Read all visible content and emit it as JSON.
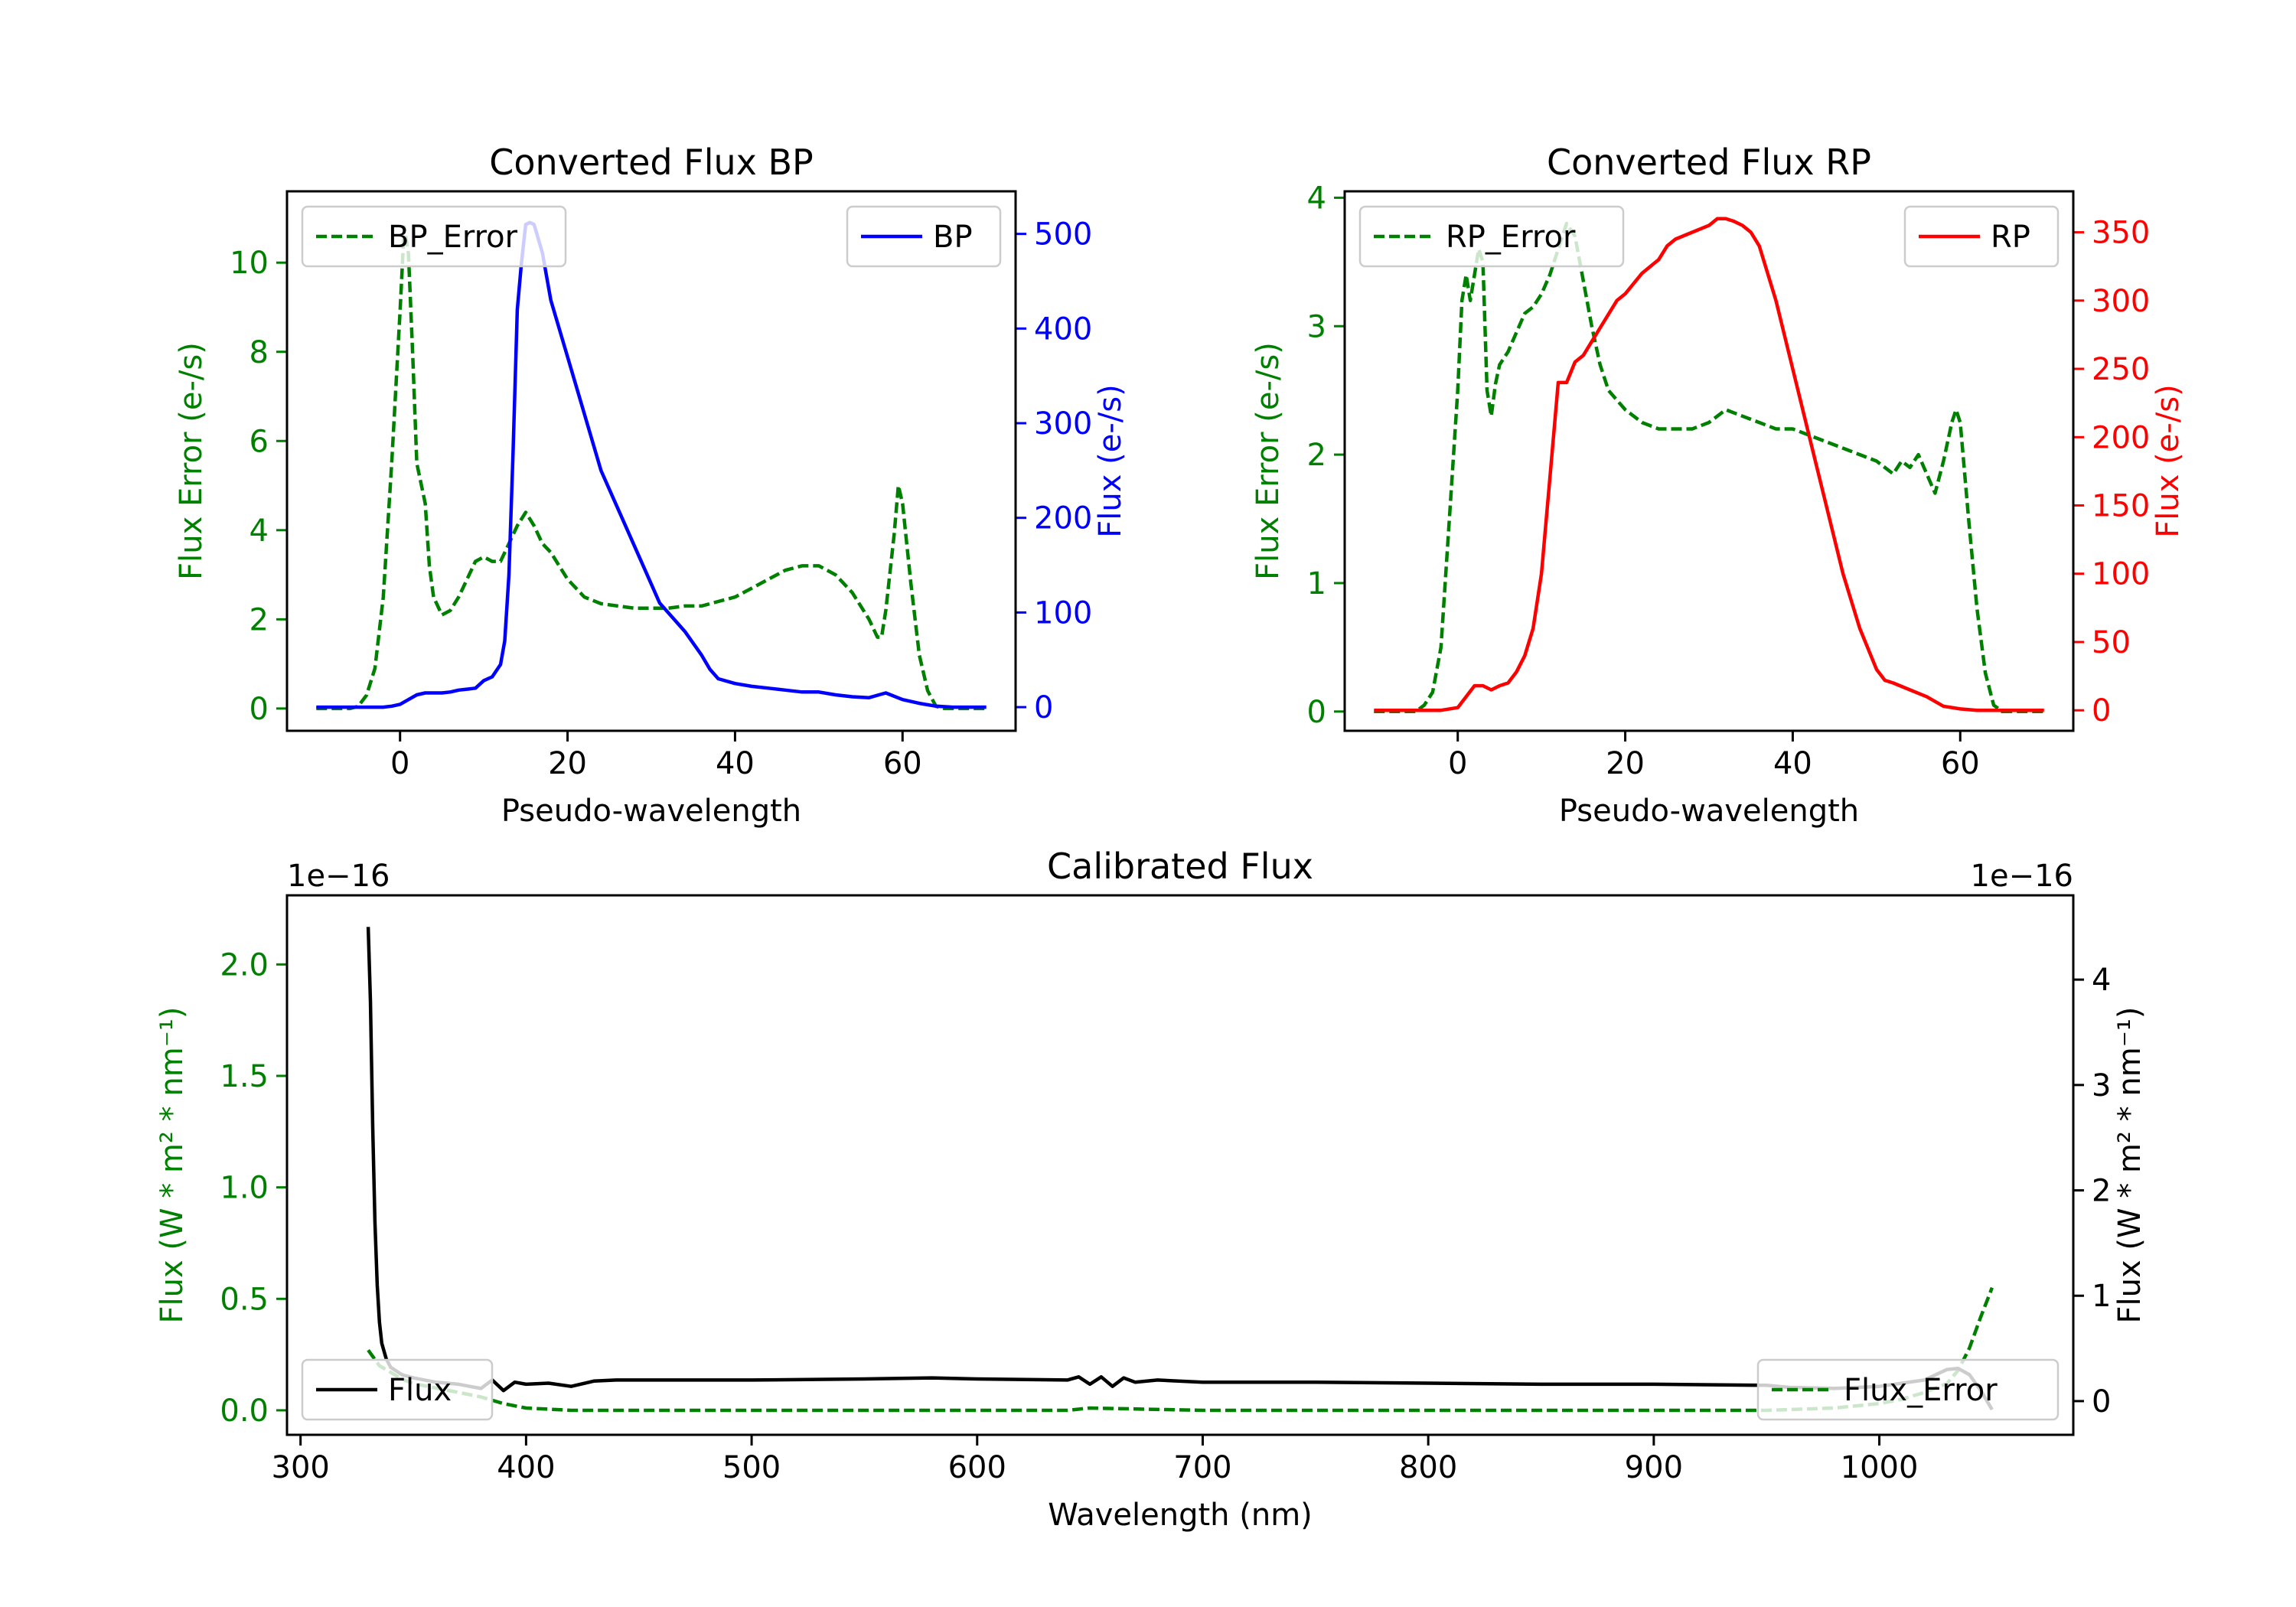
{
  "colors": {
    "axis": "#000000",
    "green": "#008000",
    "blue": "#0000ff",
    "red": "#ff0000",
    "black": "#000000",
    "white": "#ffffff"
  },
  "chart_data": [
    {
      "id": "bp",
      "type": "line",
      "title": "Converted Flux BP",
      "xlabel": "Pseudo-wavelength",
      "xlim": [
        -13.5,
        73.5
      ],
      "xticks": [
        0,
        20,
        40,
        60
      ],
      "ylabel_left": "Flux Error (e-/s)",
      "ylim_left": [
        -0.5,
        11.6
      ],
      "yticks_left": [
        0,
        2,
        4,
        6,
        8,
        10
      ],
      "ylabel_right": "Flux (e-/s)",
      "ylim_right": [
        -25,
        545
      ],
      "yticks_right": [
        0,
        100,
        200,
        300,
        400,
        500
      ],
      "legend_left": {
        "label": "BP_Error",
        "placement": "upper-left"
      },
      "legend_right": {
        "label": "BP",
        "placement": "upper-right"
      },
      "series": [
        {
          "name": "BP_Error",
          "axis": "left",
          "color": "#008000",
          "style": "dashed",
          "x": [
            -10,
            -6,
            -5,
            -4,
            -3,
            -2,
            -1,
            0,
            0.5,
            1,
            1.5,
            2,
            3,
            3.5,
            4,
            5,
            6,
            7,
            8,
            9,
            10,
            11,
            12,
            13,
            14,
            15,
            16,
            17,
            18,
            19,
            20,
            22,
            24,
            26,
            28,
            30,
            32,
            34,
            36,
            38,
            40,
            42,
            44,
            46,
            48,
            50,
            52,
            54,
            56,
            57,
            57.5,
            58,
            59,
            59.5,
            60,
            61,
            62,
            63,
            64,
            65,
            70
          ],
          "y": [
            0,
            0,
            0.05,
            0.3,
            0.9,
            2.5,
            5.5,
            8.9,
            10.8,
            10.2,
            8.0,
            5.5,
            4.6,
            3.2,
            2.5,
            2.1,
            2.2,
            2.5,
            2.9,
            3.3,
            3.4,
            3.3,
            3.3,
            3.7,
            4.1,
            4.4,
            4.1,
            3.7,
            3.5,
            3.2,
            2.9,
            2.5,
            2.35,
            2.3,
            2.25,
            2.25,
            2.25,
            2.3,
            2.3,
            2.4,
            2.5,
            2.7,
            2.9,
            3.1,
            3.2,
            3.2,
            3.0,
            2.6,
            2.0,
            1.6,
            1.6,
            2.2,
            3.9,
            5.0,
            4.6,
            2.8,
            1.2,
            0.4,
            0.05,
            0,
            0
          ]
        },
        {
          "name": "BP",
          "axis": "right",
          "color": "#0000ff",
          "style": "solid",
          "x": [
            -10,
            -6,
            -4,
            -2,
            -1,
            0,
            1,
            2,
            3,
            4,
            5,
            6,
            7,
            8,
            9,
            10,
            11,
            12,
            12.5,
            13,
            13.5,
            14,
            14.5,
            15,
            15.5,
            16,
            17,
            18,
            20,
            22,
            24,
            26,
            28,
            30,
            31,
            32,
            34,
            36,
            37,
            38,
            40,
            42,
            44,
            46,
            48,
            50,
            52,
            54,
            56,
            58,
            60,
            62,
            64,
            66,
            70
          ],
          "y": [
            0,
            0,
            0,
            0,
            1,
            3,
            8,
            13,
            15,
            15,
            15,
            16,
            18,
            19,
            20,
            28,
            32,
            45,
            70,
            140,
            270,
            420,
            470,
            510,
            512,
            510,
            480,
            430,
            370,
            310,
            250,
            210,
            170,
            130,
            110,
            100,
            80,
            55,
            40,
            30,
            25,
            22,
            20,
            18,
            16,
            16,
            13,
            11,
            10,
            15,
            8,
            4,
            1,
            0,
            0
          ]
        }
      ]
    },
    {
      "id": "rp",
      "type": "line",
      "title": "Converted Flux RP",
      "xlabel": "Pseudo-wavelength",
      "xlim": [
        -13.5,
        73.5
      ],
      "xticks": [
        0,
        20,
        40,
        60
      ],
      "ylabel_left": "Flux Error (e-/s)",
      "ylim_left": [
        -0.15,
        4.05
      ],
      "yticks_left": [
        0,
        1,
        2,
        3,
        4
      ],
      "ylabel_right": "Flux (e-/s)",
      "ylim_right": [
        -15,
        380
      ],
      "yticks_right": [
        0,
        50,
        100,
        150,
        200,
        250,
        300,
        350
      ],
      "legend_left": {
        "label": "RP_Error",
        "placement": "upper-left"
      },
      "legend_right": {
        "label": "RP",
        "placement": "upper-right"
      },
      "series": [
        {
          "name": "RP_Error",
          "axis": "left",
          "color": "#008000",
          "style": "dashed",
          "x": [
            -10,
            -5,
            -4,
            -3,
            -2,
            -1,
            0,
            0.5,
            1,
            1.5,
            2,
            2.5,
            3,
            3.5,
            4,
            4.5,
            5,
            6,
            7,
            8,
            9,
            10,
            11,
            12,
            13,
            14,
            15,
            16,
            17,
            18,
            20,
            22,
            24,
            26,
            28,
            30,
            32,
            34,
            36,
            38,
            40,
            42,
            44,
            46,
            48,
            50,
            52,
            53,
            54,
            55,
            56,
            57,
            58,
            59,
            59.5,
            60,
            61,
            62,
            63,
            64,
            65,
            70
          ],
          "y": [
            0,
            0,
            0.05,
            0.15,
            0.5,
            1.5,
            2.5,
            3.2,
            3.4,
            3.2,
            3.4,
            3.6,
            3.5,
            2.5,
            2.3,
            2.55,
            2.7,
            2.8,
            2.95,
            3.1,
            3.15,
            3.25,
            3.4,
            3.6,
            3.8,
            3.7,
            3.35,
            3.0,
            2.7,
            2.5,
            2.35,
            2.25,
            2.2,
            2.2,
            2.2,
            2.25,
            2.35,
            2.3,
            2.25,
            2.2,
            2.2,
            2.15,
            2.1,
            2.05,
            2.0,
            1.95,
            1.85,
            1.95,
            1.9,
            2.0,
            1.85,
            1.7,
            1.95,
            2.25,
            2.35,
            2.25,
            1.5,
            0.8,
            0.3,
            0.05,
            0,
            0
          ]
        },
        {
          "name": "RP",
          "axis": "right",
          "color": "#ff0000",
          "style": "solid",
          "x": [
            -10,
            -4,
            -2,
            0,
            1,
            2,
            3,
            4,
            5,
            6,
            7,
            8,
            9,
            10,
            11,
            12,
            13,
            14,
            15,
            16,
            17,
            18,
            19,
            20,
            22,
            24,
            25,
            26,
            28,
            30,
            31,
            32,
            33,
            34,
            35,
            36,
            38,
            40,
            42,
            44,
            46,
            48,
            50,
            51,
            52,
            54,
            56,
            58,
            60,
            62,
            64,
            70
          ],
          "y": [
            0,
            0,
            0,
            2,
            10,
            18,
            18,
            15,
            18,
            20,
            28,
            40,
            60,
            100,
            170,
            240,
            240,
            255,
            260,
            270,
            280,
            290,
            300,
            305,
            320,
            330,
            340,
            345,
            350,
            355,
            360,
            360,
            358,
            355,
            350,
            340,
            300,
            250,
            200,
            150,
            100,
            60,
            30,
            22,
            20,
            15,
            10,
            3,
            1,
            0,
            0,
            0
          ]
        }
      ]
    },
    {
      "id": "cal",
      "type": "line",
      "title": "Calibrated Flux",
      "xlabel": "Wavelength (nm)",
      "xlim": [
        294,
        1086
      ],
      "xticks": [
        300,
        400,
        500,
        600,
        700,
        800,
        900,
        1000
      ],
      "ylabel_left": "Flux (W * m² * nm⁻¹)",
      "ylim_left": [
        -0.11,
        2.31
      ],
      "yticks_left": [
        0.0,
        0.5,
        1.0,
        1.5,
        2.0
      ],
      "offset_left": "1e−16",
      "ylabel_right": "Flux (W * m² * nm⁻¹)",
      "ylim_right": [
        -0.32,
        4.8
      ],
      "yticks_right": [
        0,
        1,
        2,
        3,
        4
      ],
      "offset_right": "1e−16",
      "legend_left": {
        "label": "Flux",
        "placement": "lower-left"
      },
      "legend_right": {
        "label": "Flux_Error",
        "placement": "lower-right"
      },
      "series": [
        {
          "name": "Flux_Error",
          "axis": "left",
          "color": "#008000",
          "style": "dashed",
          "x": [
            330,
            335,
            340,
            345,
            350,
            360,
            370,
            380,
            390,
            400,
            420,
            450,
            500,
            550,
            600,
            640,
            650,
            700,
            750,
            800,
            850,
            900,
            950,
            980,
            1000,
            1010,
            1020,
            1030,
            1035,
            1040,
            1045,
            1050
          ],
          "y": [
            0.27,
            0.2,
            0.17,
            0.14,
            0.12,
            0.1,
            0.08,
            0.06,
            0.03,
            0.01,
            0.0,
            0.0,
            0.0,
            0.0,
            0.0,
            0.0,
            0.01,
            0.0,
            0.0,
            0.0,
            0.0,
            0.0,
            0.0,
            0.01,
            0.03,
            0.05,
            0.08,
            0.12,
            0.18,
            0.28,
            0.42,
            0.55
          ]
        },
        {
          "name": "Flux",
          "axis": "right",
          "color": "#000000",
          "style": "solid",
          "x": [
            330,
            331,
            332,
            333,
            334,
            335,
            336,
            338,
            340,
            345,
            350,
            355,
            360,
            365,
            370,
            375,
            380,
            385,
            390,
            395,
            400,
            410,
            420,
            430,
            440,
            450,
            500,
            550,
            580,
            600,
            640,
            645,
            650,
            655,
            660,
            665,
            670,
            680,
            700,
            750,
            800,
            850,
            900,
            950,
            960,
            980,
            1000,
            1020,
            1030,
            1035,
            1040,
            1045,
            1050
          ],
          "y": [
            4.5,
            3.8,
            2.6,
            1.7,
            1.1,
            0.75,
            0.55,
            0.4,
            0.32,
            0.25,
            0.22,
            0.2,
            0.18,
            0.17,
            0.16,
            0.14,
            0.12,
            0.2,
            0.1,
            0.18,
            0.16,
            0.17,
            0.14,
            0.19,
            0.2,
            0.2,
            0.2,
            0.21,
            0.22,
            0.21,
            0.2,
            0.23,
            0.16,
            0.23,
            0.14,
            0.22,
            0.18,
            0.2,
            0.18,
            0.18,
            0.17,
            0.16,
            0.16,
            0.15,
            0.13,
            0.12,
            0.14,
            0.2,
            0.3,
            0.31,
            0.25,
            0.1,
            -0.08
          ]
        }
      ]
    }
  ]
}
